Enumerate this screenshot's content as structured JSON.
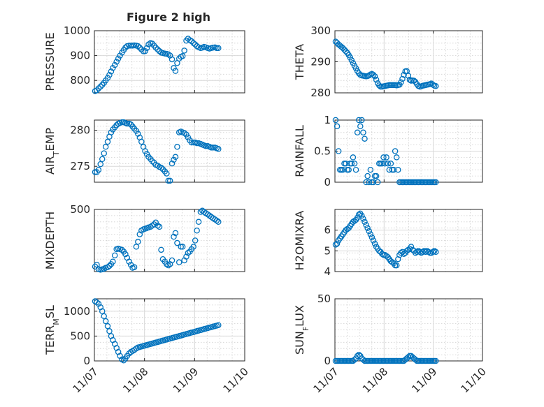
{
  "figure": {
    "title": "Figure 2 high"
  },
  "chart_data": [
    {
      "type": "scatter",
      "ylabel": "PRESSURE",
      "ylim": [
        750,
        1000
      ],
      "yticks": [
        {
          "v": 800,
          "label": "800"
        },
        {
          "v": 900,
          "label": "900"
        },
        {
          "v": 1000,
          "label": "1000"
        }
      ],
      "x": [
        0.0,
        0.07,
        0.14,
        0.22,
        0.29,
        0.36,
        0.43,
        0.51,
        0.58,
        0.65,
        0.72,
        0.8,
        0.87,
        0.94,
        1.01,
        1.09,
        1.16,
        1.23,
        1.3,
        1.38,
        1.45,
        1.52,
        1.59,
        1.67,
        1.74,
        1.81,
        1.88,
        1.96,
        2.03,
        2.1,
        2.17,
        2.25,
        2.32,
        2.39,
        2.46,
        2.54,
        2.61,
        2.68,
        2.75,
        2.83,
        2.9,
        2.97,
        3.04,
        3.12,
        3.19,
        3.26,
        3.33,
        3.41,
        3.48,
        3.55,
        3.62,
        3.7,
        3.77,
        3.84,
        3.91,
        3.99,
        4.06,
        4.13,
        4.2,
        4.28,
        4.35,
        4.42,
        4.49,
        4.57,
        4.64,
        4.71,
        4.78,
        4.86,
        4.93,
        5.0
      ],
      "y": [
        757,
        760,
        768,
        775,
        782,
        790,
        800,
        810,
        822,
        836,
        850,
        862,
        875,
        888,
        900,
        912,
        922,
        932,
        938,
        940,
        940,
        940,
        941,
        940,
        938,
        932,
        925,
        917,
        918,
        930,
        945,
        950,
        948,
        940,
        932,
        925,
        918,
        912,
        910,
        908,
        907,
        905,
        900,
        885,
        850,
        838,
        870,
        888,
        895,
        898,
        920,
        960,
        968,
        962,
        958,
        950,
        945,
        938,
        933,
        930,
        932,
        935,
        933,
        930,
        928,
        930,
        932,
        933,
        930,
        930
      ]
    },
    {
      "type": "scatter",
      "ylabel": "THETA",
      "ylim": [
        280,
        300
      ],
      "yticks": [
        {
          "v": 280,
          "label": "280"
        },
        {
          "v": 290,
          "label": "290"
        },
        {
          "v": 300,
          "label": "300"
        }
      ],
      "x": [
        0.0,
        0.06,
        0.12,
        0.18,
        0.24,
        0.3,
        0.36,
        0.42,
        0.48,
        0.54,
        0.6,
        0.66,
        0.72,
        0.78,
        0.84,
        0.9,
        0.96,
        1.02,
        1.08,
        1.14,
        1.2,
        1.26,
        1.32,
        1.38,
        1.44,
        1.5,
        1.56,
        1.62,
        1.68,
        1.74,
        1.8,
        1.86,
        1.92,
        1.98,
        2.04,
        2.1,
        2.16,
        2.22,
        2.28,
        2.34,
        2.4,
        2.46,
        2.52,
        2.58,
        2.64,
        2.7,
        2.76,
        2.82,
        2.88,
        2.94,
        3.0,
        3.06,
        3.12,
        3.18,
        3.24,
        3.3,
        3.36,
        3.42,
        3.48,
        3.54,
        3.6,
        3.66,
        3.72,
        3.78,
        3.84,
        3.9,
        3.96,
        4.02,
        4.08,
        4.14
      ],
      "y": [
        296.5,
        296.1,
        295.6,
        295.2,
        294.8,
        294.4,
        293.9,
        293.4,
        292.9,
        292.2,
        291.4,
        290.5,
        289.6,
        288.7,
        287.9,
        287.0,
        286.3,
        285.8,
        285.6,
        285.5,
        285.4,
        285.3,
        285.4,
        285.6,
        285.9,
        286.1,
        285.8,
        285.3,
        284.2,
        283.1,
        282.4,
        282.0,
        282.0,
        282.1,
        282.2,
        282.3,
        282.4,
        282.5,
        282.5,
        282.5,
        282.5,
        282.5,
        282.4,
        282.5,
        282.6,
        283.4,
        284.5,
        285.8,
        286.9,
        287.0,
        285.5,
        284.2,
        283.9,
        284.0,
        283.9,
        283.5,
        282.8,
        282.2,
        282.0,
        282.1,
        282.3,
        282.4,
        282.5,
        282.6,
        282.7,
        282.8,
        283.0,
        282.6,
        282.3,
        282.2
      ]
    },
    {
      "type": "scatter",
      "ylabel": "AIR_TEMP",
      "ylim": [
        272.8,
        281.4
      ],
      "yticks": [
        {
          "v": 275,
          "label": "275"
        },
        {
          "v": 280,
          "label": "280"
        }
      ],
      "x": [
        0.0,
        0.07,
        0.14,
        0.22,
        0.29,
        0.36,
        0.43,
        0.51,
        0.58,
        0.65,
        0.72,
        0.8,
        0.87,
        0.94,
        1.01,
        1.09,
        1.16,
        1.23,
        1.3,
        1.38,
        1.45,
        1.52,
        1.59,
        1.67,
        1.74,
        1.81,
        1.88,
        1.96,
        2.03,
        2.1,
        2.17,
        2.25,
        2.32,
        2.39,
        2.46,
        2.54,
        2.61,
        2.68,
        2.75,
        2.83,
        2.9,
        2.97,
        3.04,
        3.12,
        3.19,
        3.26,
        3.33,
        3.41,
        3.48,
        3.55,
        3.62,
        3.7,
        3.77,
        3.84,
        3.91,
        3.99,
        4.06,
        4.13,
        4.2,
        4.28,
        4.35,
        4.42,
        4.49,
        4.57,
        4.64,
        4.71,
        4.78,
        4.86,
        4.93,
        5.0
      ],
      "y": [
        274.2,
        274.2,
        274.5,
        275.3,
        276.0,
        276.8,
        277.7,
        278.4,
        279.1,
        279.7,
        280.1,
        280.4,
        280.7,
        280.9,
        281.0,
        281.1,
        281.1,
        281.0,
        280.9,
        280.9,
        280.8,
        280.5,
        280.2,
        279.9,
        279.5,
        279.0,
        278.4,
        277.7,
        277.1,
        276.7,
        276.3,
        276.0,
        275.7,
        275.5,
        275.2,
        275.1,
        274.9,
        274.8,
        274.6,
        274.3,
        274.0,
        273.0,
        273.0,
        275.4,
        275.9,
        276.3,
        277.7,
        279.7,
        279.8,
        279.7,
        279.6,
        279.4,
        279.0,
        278.6,
        278.3,
        278.3,
        278.3,
        278.2,
        278.2,
        278.1,
        278.0,
        277.9,
        277.8,
        277.8,
        277.7,
        277.6,
        277.6,
        277.6,
        277.5,
        277.4
      ]
    },
    {
      "type": "scatter",
      "ylabel": "RAINFALL",
      "ylim": [
        0,
        1
      ],
      "yticks": [
        {
          "v": 0,
          "label": "0"
        },
        {
          "v": 0.5,
          "label": "0.5"
        },
        {
          "v": 1,
          "label": "1"
        }
      ],
      "x": [
        0.0,
        0.06,
        0.12,
        0.18,
        0.24,
        0.3,
        0.36,
        0.42,
        0.48,
        0.54,
        0.6,
        0.66,
        0.72,
        0.78,
        0.84,
        0.9,
        0.96,
        1.02,
        1.08,
        1.14,
        1.2,
        1.26,
        1.32,
        1.38,
        1.44,
        1.5,
        1.56,
        1.62,
        1.68,
        1.74,
        1.8,
        1.86,
        1.92,
        1.98,
        2.04,
        2.1,
        2.16,
        2.22,
        2.28,
        2.34,
        2.4,
        2.46,
        2.52,
        2.58,
        2.64,
        2.7,
        2.76,
        2.82,
        2.88,
        2.94,
        3.0,
        3.06,
        3.12,
        3.18,
        3.24,
        3.3,
        3.36,
        3.42,
        3.48,
        3.54,
        3.6,
        3.66,
        3.72,
        3.78,
        3.84,
        3.9,
        3.96,
        4.02,
        4.08,
        4.14
      ],
      "y": [
        1,
        0.9,
        0.5,
        0.2,
        0.2,
        0.2,
        0.3,
        0.3,
        0.2,
        0.2,
        0.3,
        0.3,
        0.4,
        0.3,
        0.2,
        0.8,
        1,
        0.9,
        1,
        0.8,
        0.7,
        0,
        0.1,
        0,
        0.2,
        0,
        0,
        0.1,
        0.1,
        0,
        0.3,
        0.3,
        0.3,
        0.4,
        0.3,
        0.4,
        0.3,
        0.2,
        0.3,
        0.2,
        0.2,
        0.5,
        0.4,
        0.2,
        0,
        0,
        0,
        0,
        0,
        0,
        0,
        0,
        0,
        0,
        0,
        0,
        0,
        0,
        0,
        0,
        0,
        0,
        0,
        0,
        0,
        0,
        0,
        0,
        0,
        0
      ]
    },
    {
      "type": "scatter",
      "ylabel": "MIXDEPTH",
      "ylim": [
        0,
        500
      ],
      "yticks": [
        {
          "v": 500,
          "label": "500"
        }
      ],
      "x": [
        0.0,
        0.07,
        0.14,
        0.22,
        0.29,
        0.36,
        0.43,
        0.51,
        0.58,
        0.65,
        0.72,
        0.8,
        0.87,
        0.94,
        1.01,
        1.09,
        1.16,
        1.23,
        1.3,
        1.38,
        1.45,
        1.52,
        1.59,
        1.67,
        1.74,
        1.81,
        1.88,
        1.96,
        2.03,
        2.1,
        2.17,
        2.25,
        2.32,
        2.39,
        2.46,
        2.54,
        2.61,
        2.68,
        2.75,
        2.83,
        2.9,
        2.97,
        3.04,
        3.12,
        3.19,
        3.26,
        3.33,
        3.41,
        3.48,
        3.55,
        3.62,
        3.7,
        3.77,
        3.84,
        3.91,
        3.99,
        4.06,
        4.13,
        4.2,
        4.28,
        4.35,
        4.42,
        4.49,
        4.57,
        4.64,
        4.71,
        4.78,
        4.86,
        4.93,
        5.0
      ],
      "y": [
        40,
        55,
        20,
        15,
        18,
        22,
        30,
        35,
        45,
        60,
        80,
        130,
        180,
        185,
        180,
        175,
        160,
        140,
        110,
        80,
        55,
        30,
        35,
        200,
        240,
        300,
        330,
        340,
        345,
        350,
        355,
        360,
        370,
        380,
        395,
        370,
        360,
        175,
        100,
        80,
        60,
        50,
        60,
        90,
        280,
        310,
        230,
        75,
        200,
        200,
        90,
        120,
        150,
        160,
        180,
        200,
        250,
        330,
        400,
        480,
        490,
        480,
        470,
        460,
        450,
        440,
        430,
        420,
        410,
        400
      ]
    },
    {
      "type": "scatter",
      "ylabel": "H2OMIXRA",
      "ylim": [
        4,
        7
      ],
      "yticks": [
        {
          "v": 4,
          "label": "4"
        },
        {
          "v": 5,
          "label": "5"
        },
        {
          "v": 6,
          "label": "6"
        }
      ],
      "x": [
        0.0,
        0.06,
        0.12,
        0.18,
        0.24,
        0.3,
        0.36,
        0.42,
        0.48,
        0.54,
        0.6,
        0.66,
        0.72,
        0.78,
        0.84,
        0.9,
        0.96,
        1.02,
        1.08,
        1.14,
        1.2,
        1.26,
        1.32,
        1.38,
        1.44,
        1.5,
        1.56,
        1.62,
        1.68,
        1.74,
        1.8,
        1.86,
        1.92,
        1.98,
        2.04,
        2.1,
        2.16,
        2.22,
        2.28,
        2.34,
        2.4,
        2.46,
        2.52,
        2.58,
        2.64,
        2.7,
        2.76,
        2.82,
        2.88,
        2.94,
        3.0,
        3.06,
        3.12,
        3.18,
        3.24,
        3.3,
        3.36,
        3.42,
        3.48,
        3.54,
        3.6,
        3.66,
        3.72,
        3.78,
        3.84,
        3.9,
        3.96,
        4.02,
        4.08,
        4.14
      ],
      "y": [
        5.3,
        5.35,
        5.5,
        5.6,
        5.7,
        5.8,
        5.9,
        6.0,
        6.05,
        6.1,
        6.2,
        6.3,
        6.4,
        6.45,
        6.5,
        6.6,
        6.75,
        6.8,
        6.7,
        6.55,
        6.4,
        6.25,
        6.1,
        5.95,
        5.8,
        5.65,
        5.5,
        5.35,
        5.2,
        5.1,
        5.0,
        4.95,
        4.85,
        4.8,
        4.8,
        4.75,
        4.7,
        4.6,
        4.5,
        4.45,
        4.4,
        4.3,
        4.3,
        4.6,
        4.8,
        4.9,
        4.95,
        4.85,
        4.9,
        5.0,
        5.05,
        5.1,
        5.2,
        5.05,
        5.0,
        4.9,
        4.95,
        5.0,
        4.95,
        4.9,
        4.95,
        5.0,
        4.95,
        5.0,
        4.95,
        4.9,
        4.9,
        4.95,
        5.0,
        4.95
      ]
    },
    {
      "type": "scatter",
      "ylabel": "TERR_MSL",
      "ylim": [
        0,
        1250
      ],
      "yticks": [
        {
          "v": 0,
          "label": "0"
        },
        {
          "v": 500,
          "label": "500"
        },
        {
          "v": 1000,
          "label": "1000"
        }
      ],
      "xlabels": [
        "11/07",
        "11/08",
        "11/09",
        "11/10"
      ],
      "x": [
        0.0,
        0.07,
        0.14,
        0.22,
        0.29,
        0.36,
        0.43,
        0.51,
        0.58,
        0.65,
        0.72,
        0.8,
        0.87,
        0.94,
        1.01,
        1.09,
        1.16,
        1.23,
        1.3,
        1.38,
        1.45,
        1.52,
        1.59,
        1.67,
        1.74,
        1.81,
        1.88,
        1.96,
        2.03,
        2.1,
        2.17,
        2.25,
        2.32,
        2.39,
        2.46,
        2.54,
        2.61,
        2.68,
        2.75,
        2.83,
        2.9,
        2.97,
        3.04,
        3.12,
        3.19,
        3.26,
        3.33,
        3.41,
        3.48,
        3.55,
        3.62,
        3.7,
        3.77,
        3.84,
        3.91,
        3.99,
        4.06,
        4.13,
        4.2,
        4.28,
        4.35,
        4.42,
        4.49,
        4.57,
        4.64,
        4.71,
        4.78,
        4.86,
        4.93,
        5.0
      ],
      "y": [
        1200,
        1180,
        1150,
        1080,
        1000,
        900,
        800,
        700,
        600,
        500,
        420,
        340,
        260,
        180,
        100,
        30,
        10,
        50,
        100,
        150,
        180,
        200,
        220,
        250,
        270,
        280,
        290,
        300,
        310,
        320,
        330,
        340,
        350,
        360,
        370,
        380,
        390,
        400,
        410,
        420,
        430,
        440,
        450,
        460,
        470,
        480,
        490,
        500,
        510,
        520,
        530,
        540,
        550,
        560,
        570,
        580,
        590,
        600,
        610,
        620,
        630,
        640,
        650,
        660,
        670,
        680,
        690,
        700,
        710,
        720
      ]
    },
    {
      "type": "scatter",
      "ylabel": "SUN_FLUX",
      "ylim": [
        0,
        50
      ],
      "yticks": [
        {
          "v": 0,
          "label": "0"
        },
        {
          "v": 50,
          "label": "50"
        }
      ],
      "xlabels": [
        "11/07",
        "11/08",
        "11/09",
        "11/10"
      ],
      "x": [
        0.0,
        0.06,
        0.12,
        0.18,
        0.24,
        0.3,
        0.36,
        0.42,
        0.48,
        0.54,
        0.6,
        0.66,
        0.72,
        0.78,
        0.84,
        0.9,
        0.96,
        1.02,
        1.08,
        1.14,
        1.2,
        1.26,
        1.32,
        1.38,
        1.44,
        1.5,
        1.56,
        1.62,
        1.68,
        1.74,
        1.8,
        1.86,
        1.92,
        1.98,
        2.04,
        2.1,
        2.16,
        2.22,
        2.28,
        2.34,
        2.4,
        2.46,
        2.52,
        2.58,
        2.64,
        2.7,
        2.76,
        2.82,
        2.88,
        2.94,
        3.0,
        3.06,
        3.12,
        3.18,
        3.24,
        3.3,
        3.36,
        3.42,
        3.48,
        3.54,
        3.6,
        3.66,
        3.72,
        3.78,
        3.84,
        3.9,
        3.96,
        4.02,
        4.08,
        4.14
      ],
      "y": [
        0,
        0,
        0,
        0,
        0,
        0,
        0,
        0,
        0,
        0,
        0,
        0,
        0,
        1,
        2,
        4,
        5,
        4,
        2,
        1,
        0,
        0,
        0,
        0,
        0,
        0,
        0,
        0,
        0,
        0,
        0,
        0,
        0,
        0,
        0,
        0,
        0,
        0,
        0,
        0,
        0,
        0,
        0,
        0,
        0,
        0,
        0,
        0,
        1,
        2,
        3,
        4,
        4,
        3,
        2,
        1,
        0,
        0,
        0,
        0,
        0,
        0,
        0,
        0,
        0,
        0,
        0,
        0,
        0,
        0
      ]
    }
  ]
}
